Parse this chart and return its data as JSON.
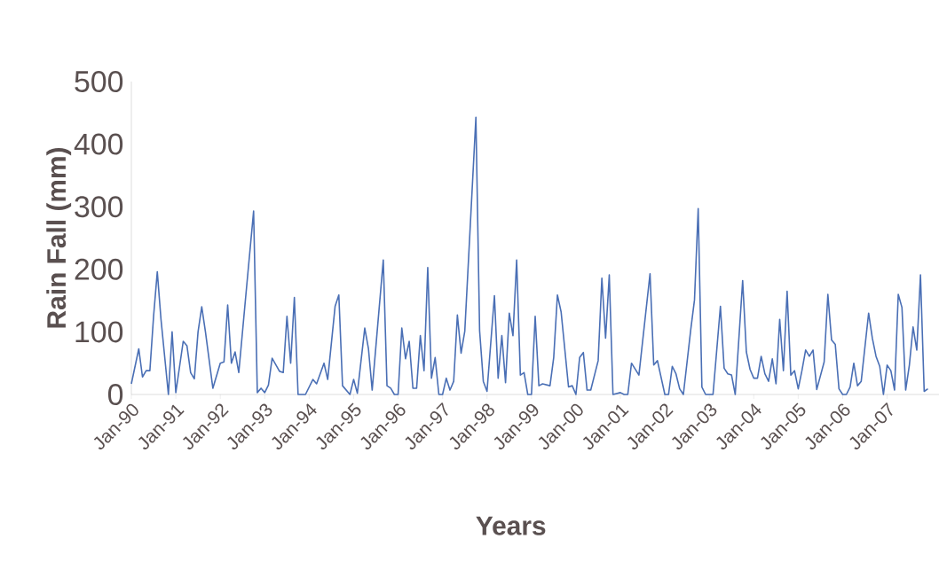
{
  "chart_data": {
    "type": "line",
    "xlabel": "Years",
    "ylabel": "Rain Fall (mm)",
    "x": [
      "1990-01",
      "1990-03",
      "1990-04",
      "1990-05",
      "1990-06",
      "1990-07",
      "1990-08",
      "1990-09",
      "1990-11",
      "1990-12",
      "1991-01",
      "1991-03",
      "1991-04",
      "1991-05",
      "1991-06",
      "1991-07",
      "1991-08",
      "1991-09",
      "1991-11",
      "1992-01",
      "1992-02",
      "1992-03",
      "1992-04",
      "1992-05",
      "1992-06",
      "1992-08",
      "1992-10",
      "1992-11",
      "1992-12",
      "1993-01",
      "1993-02",
      "1993-03",
      "1993-05",
      "1993-06",
      "1993-07",
      "1993-08",
      "1993-09",
      "1993-10",
      "1993-12",
      "1994-02",
      "1994-03",
      "1994-05",
      "1994-06",
      "1994-08",
      "1994-09",
      "1994-10",
      "1994-12",
      "1995-01",
      "1995-02",
      "1995-04",
      "1995-05",
      "1995-06",
      "1995-09",
      "1995-10",
      "1995-11",
      "1995-12",
      "1996-01",
      "1996-02",
      "1996-03",
      "1996-04",
      "1996-05",
      "1996-06",
      "1996-07",
      "1996-08",
      "1996-09",
      "1996-10",
      "1996-11",
      "1996-12",
      "1997-01",
      "1997-02",
      "1997-03",
      "1997-04",
      "1997-05",
      "1997-06",
      "1997-07",
      "1997-10",
      "1997-11",
      "1997-12",
      "1998-01",
      "1998-03",
      "1998-04",
      "1998-05",
      "1998-06",
      "1998-07",
      "1998-08",
      "1998-09",
      "1998-10",
      "1998-11",
      "1998-12",
      "1999-01",
      "1999-02",
      "1999-03",
      "1999-04",
      "1999-06",
      "1999-07",
      "1999-08",
      "1999-09",
      "1999-11",
      "1999-12",
      "2000-01",
      "2000-02",
      "2000-03",
      "2000-04",
      "2000-05",
      "2000-07",
      "2000-08",
      "2000-09",
      "2000-10",
      "2000-11",
      "2001-01",
      "2001-02",
      "2001-03",
      "2001-04",
      "2001-06",
      "2001-09",
      "2001-10",
      "2001-11",
      "2002-01",
      "2002-02",
      "2002-03",
      "2002-04",
      "2002-05",
      "2002-06",
      "2002-08",
      "2002-09",
      "2002-10",
      "2002-11",
      "2002-12",
      "2003-02",
      "2003-04",
      "2003-05",
      "2003-06",
      "2003-07",
      "2003-08",
      "2003-10",
      "2003-11",
      "2003-12",
      "2004-01",
      "2004-02",
      "2004-03",
      "2004-04",
      "2004-05",
      "2004-06",
      "2004-07",
      "2004-08",
      "2004-09",
      "2004-10",
      "2004-11",
      "2004-12",
      "2005-01",
      "2005-02",
      "2005-03",
      "2005-04",
      "2005-05",
      "2005-06",
      "2005-08",
      "2005-09",
      "2005-10",
      "2005-11",
      "2005-12",
      "2006-01",
      "2006-02",
      "2006-03",
      "2006-04",
      "2006-05",
      "2006-06",
      "2006-08",
      "2006-09",
      "2006-10",
      "2006-11",
      "2006-12",
      "2007-01",
      "2007-02",
      "2007-03",
      "2007-04",
      "2007-05",
      "2007-06",
      "2007-07",
      "2007-08",
      "2007-09",
      "2007-10",
      "2007-11",
      "2007-12"
    ],
    "values": [
      17,
      73,
      28,
      38,
      38,
      125,
      196,
      120,
      0,
      100,
      3,
      85,
      78,
      35,
      25,
      100,
      140,
      100,
      10,
      50,
      52,
      143,
      50,
      68,
      35,
      165,
      293,
      3,
      10,
      3,
      15,
      58,
      37,
      35,
      125,
      50,
      155,
      0,
      0,
      24,
      17,
      50,
      24,
      141,
      159,
      14,
      0,
      24,
      2,
      106,
      73,
      7,
      215,
      14,
      10,
      0,
      0,
      106,
      57,
      85,
      10,
      10,
      94,
      38,
      203,
      26,
      59,
      0,
      0,
      26,
      7,
      21,
      127,
      66,
      101,
      443,
      102,
      21,
      5,
      158,
      26,
      94,
      19,
      130,
      94,
      215,
      31,
      35,
      0,
      0,
      125,
      14,
      17,
      14,
      59,
      159,
      132,
      12,
      14,
      0,
      59,
      67,
      7,
      7,
      54,
      186,
      90,
      191,
      0,
      3,
      0,
      0,
      50,
      31,
      193,
      47,
      54,
      0,
      0,
      45,
      33,
      9,
      0,
      104,
      151,
      297,
      12,
      0,
      0,
      141,
      42,
      33,
      31,
      0,
      182,
      68,
      40,
      26,
      26,
      61,
      33,
      21,
      57,
      17,
      120,
      38,
      165,
      31,
      38,
      9,
      38,
      71,
      61,
      71,
      8,
      52,
      160,
      87,
      80,
      9,
      0,
      0,
      12,
      50,
      14,
      21,
      130,
      90,
      61,
      45,
      0,
      47,
      38,
      7,
      160,
      139,
      7,
      47,
      108,
      71,
      191,
      5,
      9
    ],
    "color": "#4a6fb5",
    "xlim": [
      "1990-01",
      "2008-03"
    ],
    "xticks": [
      {
        "value": "1990-01",
        "label": "Jan-90"
      },
      {
        "value": "1991-01",
        "label": "Jan-91"
      },
      {
        "value": "1992-01",
        "label": "Jan-92"
      },
      {
        "value": "1993-01",
        "label": "Jan-93"
      },
      {
        "value": "1994-01",
        "label": "Jan-94"
      },
      {
        "value": "1995-01",
        "label": "Jan-95"
      },
      {
        "value": "1996-01",
        "label": "Jan-96"
      },
      {
        "value": "1997-01",
        "label": "Jan-97"
      },
      {
        "value": "1998-01",
        "label": "Jan-98"
      },
      {
        "value": "1999-01",
        "label": "Jan-99"
      },
      {
        "value": "2000-01",
        "label": "Jan-00"
      },
      {
        "value": "2001-01",
        "label": "Jan-01"
      },
      {
        "value": "2002-01",
        "label": "Jan-02"
      },
      {
        "value": "2003-01",
        "label": "Jan-03"
      },
      {
        "value": "2004-01",
        "label": "Jan-04"
      },
      {
        "value": "2005-01",
        "label": "Jan-05"
      },
      {
        "value": "2006-01",
        "label": "Jan-06"
      },
      {
        "value": "2007-01",
        "label": "Jan-07"
      }
    ],
    "ylim": [
      0,
      500
    ],
    "yticks": [
      0,
      100,
      200,
      300,
      400,
      500
    ],
    "grid": false,
    "marker": "none",
    "line_style": "solid"
  }
}
